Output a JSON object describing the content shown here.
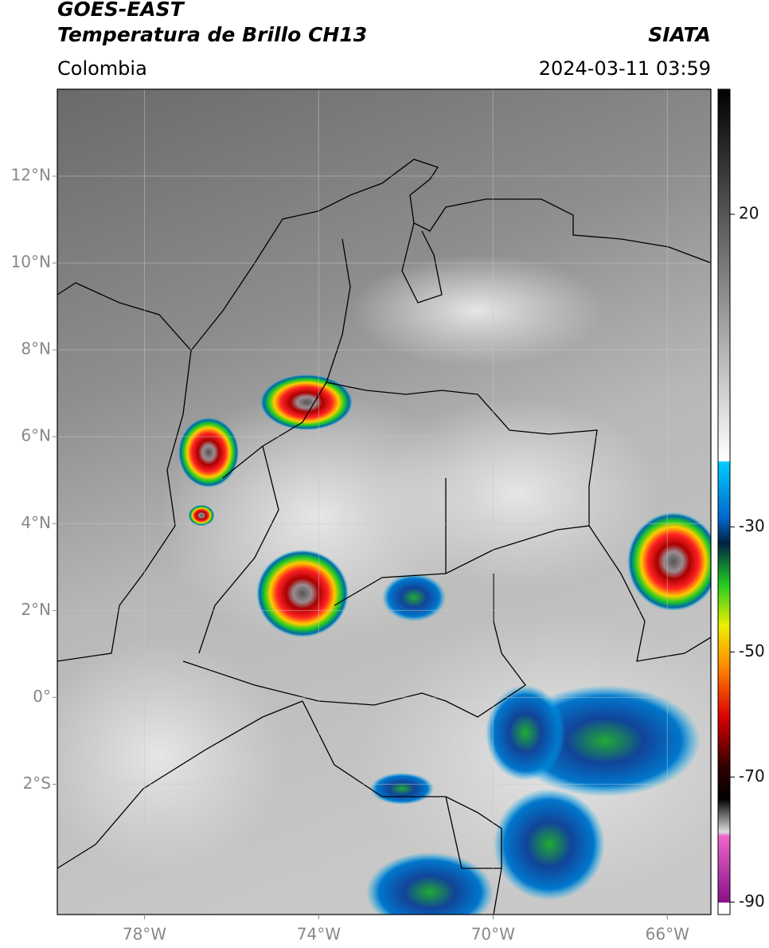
{
  "header": {
    "title": "GOES-EAST",
    "subtitle": "Temperatura de Brillo CH13",
    "source": "SIATA",
    "region": "Colombia",
    "datetime": "2024-03-11 03:59"
  },
  "map": {
    "lonlim": [
      -80,
      -65
    ],
    "latlim": [
      -5,
      14
    ],
    "lon_ticks": [
      {
        "value": -78,
        "label": "78°W"
      },
      {
        "value": -74,
        "label": "74°W"
      },
      {
        "value": -70,
        "label": "70°W"
      },
      {
        "value": -66,
        "label": "66°W"
      }
    ],
    "lat_ticks": [
      {
        "value": 12,
        "label": "12°N"
      },
      {
        "value": 10,
        "label": "10°N"
      },
      {
        "value": 8,
        "label": "8°N"
      },
      {
        "value": 6,
        "label": "6°N"
      },
      {
        "value": 4,
        "label": "4°N"
      },
      {
        "value": 2,
        "label": "2°N"
      },
      {
        "value": 0,
        "label": "0°"
      },
      {
        "value": -2,
        "label": "2°S"
      }
    ],
    "grid": true
  },
  "colorbar": {
    "lim": [
      -92,
      40
    ],
    "ticks": [
      20,
      -30,
      -50,
      -70,
      -90
    ]
  }
}
